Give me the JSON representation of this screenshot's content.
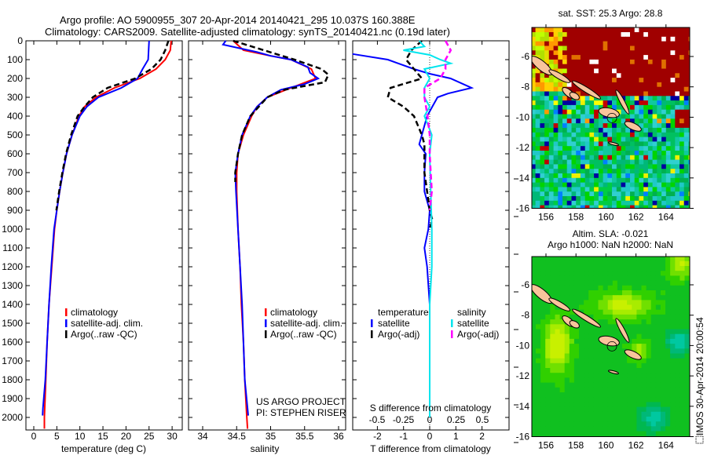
{
  "header": {
    "title_line1": "Argo profile: AO 5900955_307 20-Apr-2014 20140421_295 10.037S 160.388E",
    "title_line2": "Climatology: CARS2009. Satellite-adjusted climatology: synTS_20140421.nc (0.19d later)"
  },
  "colors": {
    "climatology": "#ff0000",
    "satellite": "#0000ff",
    "argo": "#000000",
    "sal_satellite": "#00e5ee",
    "sal_argo": "#ff00ff",
    "land": "#f9c49c"
  },
  "chart_data": [
    {
      "type": "line",
      "title": "",
      "xlabel": "temperature (deg C)",
      "ylabel": "",
      "xlim": [
        -1.7,
        32.2
      ],
      "ylim": [
        2067,
        0
      ],
      "xticks": [
        "0",
        "5",
        "10",
        "15",
        "20",
        "25",
        "30"
      ],
      "xtick_values": [
        0,
        5,
        10,
        15,
        20,
        25,
        30
      ],
      "yticks": [
        "0",
        "100",
        "200",
        "300",
        "400",
        "500",
        "600",
        "700",
        "800",
        "900",
        "1000",
        "1100",
        "1200",
        "1300",
        "1400",
        "1500",
        "1600",
        "1700",
        "1800",
        "1900",
        "2000"
      ],
      "ytick_values": [
        0,
        100,
        200,
        300,
        400,
        500,
        600,
        700,
        800,
        900,
        1000,
        1100,
        1200,
        1300,
        1400,
        1500,
        1600,
        1700,
        1800,
        1900,
        2000
      ],
      "legend": [
        "climatology",
        "satellite-adj. clim.",
        "Argo(..raw -QC)"
      ],
      "legend_placement": "center-right",
      "series": [
        {
          "name": "climatology",
          "color": "#ff0000",
          "depth": [
            0,
            50,
            100,
            150,
            200,
            250,
            300,
            350,
            400,
            500,
            600,
            700,
            800,
            900,
            1000,
            1200,
            1400,
            1600,
            1800,
            2000,
            2060
          ],
          "values": [
            29.8,
            29.6,
            28.5,
            26.5,
            23,
            17.5,
            13.5,
            11,
            9.8,
            8.3,
            7.1,
            6.3,
            5.6,
            5.0,
            4.5,
            3.9,
            3.3,
            2.9,
            2.6,
            2.3,
            2.3
          ]
        },
        {
          "name": "satellite-adj. clim.",
          "color": "#0000ff",
          "depth": [
            0,
            100,
            150,
            200,
            250,
            300,
            350,
            400,
            500,
            600,
            700,
            800,
            900,
            1000,
            1200,
            1400,
            1600,
            1800,
            1950,
            1990
          ],
          "values": [
            25,
            24.8,
            23.6,
            22.5,
            19,
            14,
            11.5,
            10,
            8.3,
            7.1,
            6.3,
            5.6,
            5.0,
            4.4,
            3.8,
            3.3,
            2.9,
            2.5,
            2.0,
            1.9
          ]
        },
        {
          "name": "Argo(..raw -QC)",
          "color": "#000000",
          "dashed": true,
          "depth": [
            0,
            50,
            100,
            150,
            200,
            250,
            300,
            350,
            400,
            500,
            600,
            700,
            800,
            900
          ],
          "values": [
            29.2,
            28.5,
            27.5,
            25.5,
            22,
            16,
            12.8,
            11,
            9.5,
            8.1,
            7.0,
            6.2,
            5.5,
            4.9
          ]
        }
      ]
    },
    {
      "type": "line",
      "xlabel": "salinity",
      "xlim": [
        33.79,
        36.1
      ],
      "ylim": [
        2067,
        0
      ],
      "xticks": [
        "34",
        "34.5",
        "35",
        "35.5",
        "36"
      ],
      "xtick_values": [
        34,
        34.5,
        35,
        35.5,
        36
      ],
      "legend": [
        "climatology",
        "satellite-adj. clim.",
        "Argo(..raw -QC)"
      ],
      "legend_placement": "center-right",
      "annotation": [
        "US ARGO PROJECT",
        "PI: STEPHEN RISER"
      ],
      "series": [
        {
          "name": "climatology",
          "color": "#ff0000",
          "depth": [
            0,
            50,
            80,
            100,
            150,
            200,
            250,
            300,
            350,
            400,
            500,
            600,
            700,
            800,
            1000,
            1200,
            1400,
            1600,
            1800,
            2000,
            2060
          ],
          "values": [
            34.45,
            34.6,
            35.0,
            35.3,
            35.6,
            35.66,
            35.3,
            34.95,
            34.8,
            34.72,
            34.6,
            34.52,
            34.5,
            34.5,
            34.52,
            34.55,
            34.57,
            34.6,
            34.62,
            34.65,
            34.66
          ]
        },
        {
          "name": "satellite-adj. clim.",
          "color": "#0000ff",
          "depth": [
            0,
            20,
            60,
            80,
            100,
            140,
            170,
            200,
            230,
            260,
            300,
            350,
            400,
            500,
            600,
            700,
            800,
            1000,
            1200,
            1400,
            1600,
            1800,
            1990
          ],
          "values": [
            34.34,
            34.3,
            34.8,
            35.0,
            35.3,
            35.55,
            35.58,
            35.7,
            35.5,
            35.15,
            34.95,
            34.8,
            34.7,
            34.58,
            34.52,
            34.48,
            34.49,
            34.52,
            34.55,
            34.58,
            34.6,
            34.62,
            34.67
          ]
        },
        {
          "name": "Argo(..raw -QC)",
          "color": "#000000",
          "dashed": true,
          "depth": [
            0,
            50,
            100,
            150,
            180,
            220,
            260,
            300,
            400,
            500,
            600,
            700,
            750
          ],
          "values": [
            34.45,
            34.9,
            35.35,
            35.75,
            35.85,
            35.8,
            35.2,
            34.95,
            34.7,
            34.58,
            34.52,
            34.48,
            34.48
          ]
        }
      ]
    },
    {
      "type": "line",
      "xlabel": "T difference from climatology",
      "xlabel2": "S difference from climatology",
      "xlim": [
        -2.95,
        3.03
      ],
      "xlim2": [
        -0.73,
        0.75
      ],
      "ylim": [
        2067,
        0
      ],
      "xticks": [
        "-2",
        "-1",
        "0",
        "1",
        "2"
      ],
      "xtick_values": [
        -2,
        -1,
        0,
        1,
        2
      ],
      "xticks2": [
        "-0.5",
        "-0.25",
        "0",
        "0.25",
        "0.5"
      ],
      "xtick_values2": [
        -0.5,
        -0.25,
        0,
        0.25,
        0.5
      ],
      "legend_headers": [
        "temperature",
        "salinity"
      ],
      "legend": [
        "satellite",
        "Argo(-adj)",
        "satellite",
        "Argo(-adj)"
      ],
      "legend_placement": "lower-center",
      "series": [
        {
          "name": "T satellite",
          "axis": "T",
          "color": "#0000ff",
          "depth": [
            70,
            100,
            150,
            175,
            200,
            250,
            280,
            300,
            350,
            400,
            500,
            550,
            600,
            700,
            800,
            900,
            1000,
            1100,
            1200,
            1400,
            1600,
            2000
          ],
          "values": [
            -2.95,
            -1.6,
            -0.6,
            0,
            0.8,
            1.6,
            0.7,
            0.3,
            0.1,
            -0.1,
            -0.3,
            -0.4,
            -0.15,
            -0.2,
            -0.2,
            0,
            -0.05,
            -0.2,
            -0.1,
            0,
            0,
            0
          ]
        },
        {
          "name": "T Argo(-adj)",
          "axis": "T",
          "color": "#000000",
          "dashed": true,
          "depth": [
            0,
            50,
            100,
            150,
            200,
            250,
            300,
            350,
            400,
            500,
            550,
            700,
            800,
            900,
            950,
            1000
          ],
          "values": [
            -0.3,
            -0.7,
            -0.9,
            -0.6,
            -0.3,
            -1.5,
            -1.6,
            -1.0,
            -0.6,
            -0.3,
            -0.2,
            -0.2,
            -0.1,
            0,
            0.1,
            0
          ]
        },
        {
          "name": "S satellite",
          "axis": "S",
          "color": "#00e5ee",
          "depth": [
            0,
            30,
            50,
            75,
            100,
            120,
            150,
            200,
            250,
            300,
            350,
            400,
            500,
            600,
            800,
            1000,
            1200,
            1400,
            1600,
            1800,
            2000
          ],
          "values": [
            -0.1,
            -0.05,
            -0.25,
            0,
            0.1,
            0.2,
            -0.05,
            0,
            -0.05,
            -0.05,
            0,
            -0.05,
            0.02,
            0,
            0.01,
            0.02,
            0.02,
            0,
            0,
            0,
            0
          ]
        },
        {
          "name": "S Argo(-adj)",
          "axis": "S",
          "color": "#ff00ff",
          "dashed": true,
          "depth": [
            0,
            50,
            100,
            150,
            200,
            250,
            300,
            400,
            500,
            600,
            700,
            800,
            900
          ],
          "values": [
            0.15,
            0.2,
            0.15,
            0.15,
            0.1,
            -0.05,
            -0.05,
            -0.02,
            0,
            0,
            0.01,
            0.02,
            0
          ]
        }
      ]
    },
    {
      "type": "heatmap",
      "title": "sat. SST: 25.3 Argo: 28.8",
      "xticks": [
        "156",
        "158",
        "160",
        "162",
        "164"
      ],
      "xtick_values": [
        156,
        158,
        160,
        162,
        164
      ],
      "yticks": [
        "-6",
        "-8",
        "-10",
        "-12",
        "-14",
        "-16"
      ],
      "ytick_values": [
        -6,
        -8,
        -10,
        -12,
        -14,
        -16
      ],
      "xlim": [
        155.1,
        165.6
      ],
      "ylim": [
        -16.1,
        -3.98
      ]
    },
    {
      "type": "heatmap",
      "title": "Altim. SLA: -0.021",
      "subtitle": "Argo h1000: NaN h2000: NaN",
      "xticks": [
        "156",
        "158",
        "160",
        "162",
        "164"
      ],
      "xtick_values": [
        156,
        158,
        160,
        162,
        164
      ],
      "yticks": [
        "-6",
        "-8",
        "-10",
        "-12",
        "-14",
        "-16"
      ],
      "ytick_values": [
        -6,
        -8,
        -10,
        -12,
        -14,
        -16
      ],
      "xlim": [
        155.1,
        165.6
      ],
      "ylim": [
        -16.1,
        -4.1
      ]
    }
  ],
  "watermark": "IMOS 30-Apr-2014 20:00:54"
}
